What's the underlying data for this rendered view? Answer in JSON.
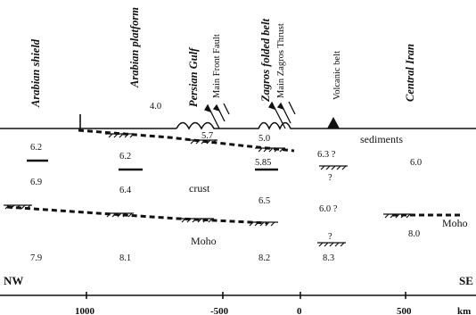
{
  "regions": {
    "arabian_shield": "Arabian shield",
    "arabian_platform": "Arabian platform",
    "persian_gulf": "Persian Gulf",
    "main_front_fault": "Main Front Fault",
    "zagros_folded_belt": "Zagros folded belt",
    "main_zagros_thrust": "Main Zagros Thrust",
    "volcanic_belt": "Volcanic belt",
    "central_iran": "Central Iran"
  },
  "layer_labels": {
    "sediments": "sediments",
    "crust": "crust",
    "moho_center": "Moho",
    "moho_right": "Moho"
  },
  "values": {
    "v_4_0": "4.0",
    "v_5_7": "5.7",
    "v_5_0": "5.0",
    "v_6_2a": "6.2",
    "v_6_2b": "6.2",
    "v_6_3q": "6.3 ?",
    "v_6_0a": "6.0",
    "v_5_85": "5.85",
    "v_q1": "?",
    "v_6_9": "6.9",
    "v_6_4": "6.4",
    "v_6_5": "6.5",
    "v_6_0q": "6.0 ?",
    "v_q2": "?",
    "v_8_0": "8.0",
    "v_7_9": "7.9",
    "v_8_1": "8.1",
    "v_8_2": "8.2",
    "v_8_3": "8.3"
  },
  "axis": {
    "left_dir": "NW",
    "right_dir": "SE",
    "ticks": [
      "1000",
      "-500",
      "0",
      "500"
    ],
    "unit": "km"
  }
}
